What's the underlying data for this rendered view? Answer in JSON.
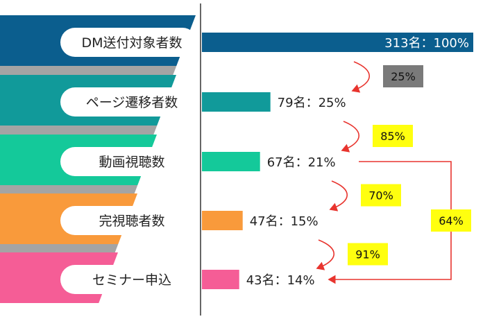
{
  "chart_data": {
    "type": "bar",
    "orientation": "horizontal",
    "categories": [
      "DM送付対象者数",
      "ページ遷移者数",
      "動画視聴数",
      "完視聴者数",
      "セミナー申込"
    ],
    "values": [
      313,
      79,
      67,
      47,
      43
    ],
    "percentages": [
      100,
      25,
      21,
      15,
      14
    ],
    "value_labels": [
      "313名：100%",
      "79名：25%",
      "67名：21%",
      "47名：15%",
      "43名：14%"
    ],
    "colors": [
      "#0b5e8e",
      "#119a9a",
      "#14c99a",
      "#f99a3b",
      "#f55d96"
    ],
    "xlim": [
      0,
      313
    ],
    "step_conversions": [
      {
        "from": 0,
        "to": 1,
        "label": "25%",
        "style": "gray"
      },
      {
        "from": 1,
        "to": 2,
        "label": "85%",
        "style": "yellow"
      },
      {
        "from": 2,
        "to": 3,
        "label": "70%",
        "style": "yellow"
      },
      {
        "from": 3,
        "to": 4,
        "label": "91%",
        "style": "yellow"
      }
    ],
    "span_conversion": {
      "from": 2,
      "to": 4,
      "label": "64%"
    },
    "arrow_color": "#e8342e",
    "badge_colors": {
      "gray": "#7a7a7a",
      "yellow": "#ffff0f"
    }
  }
}
